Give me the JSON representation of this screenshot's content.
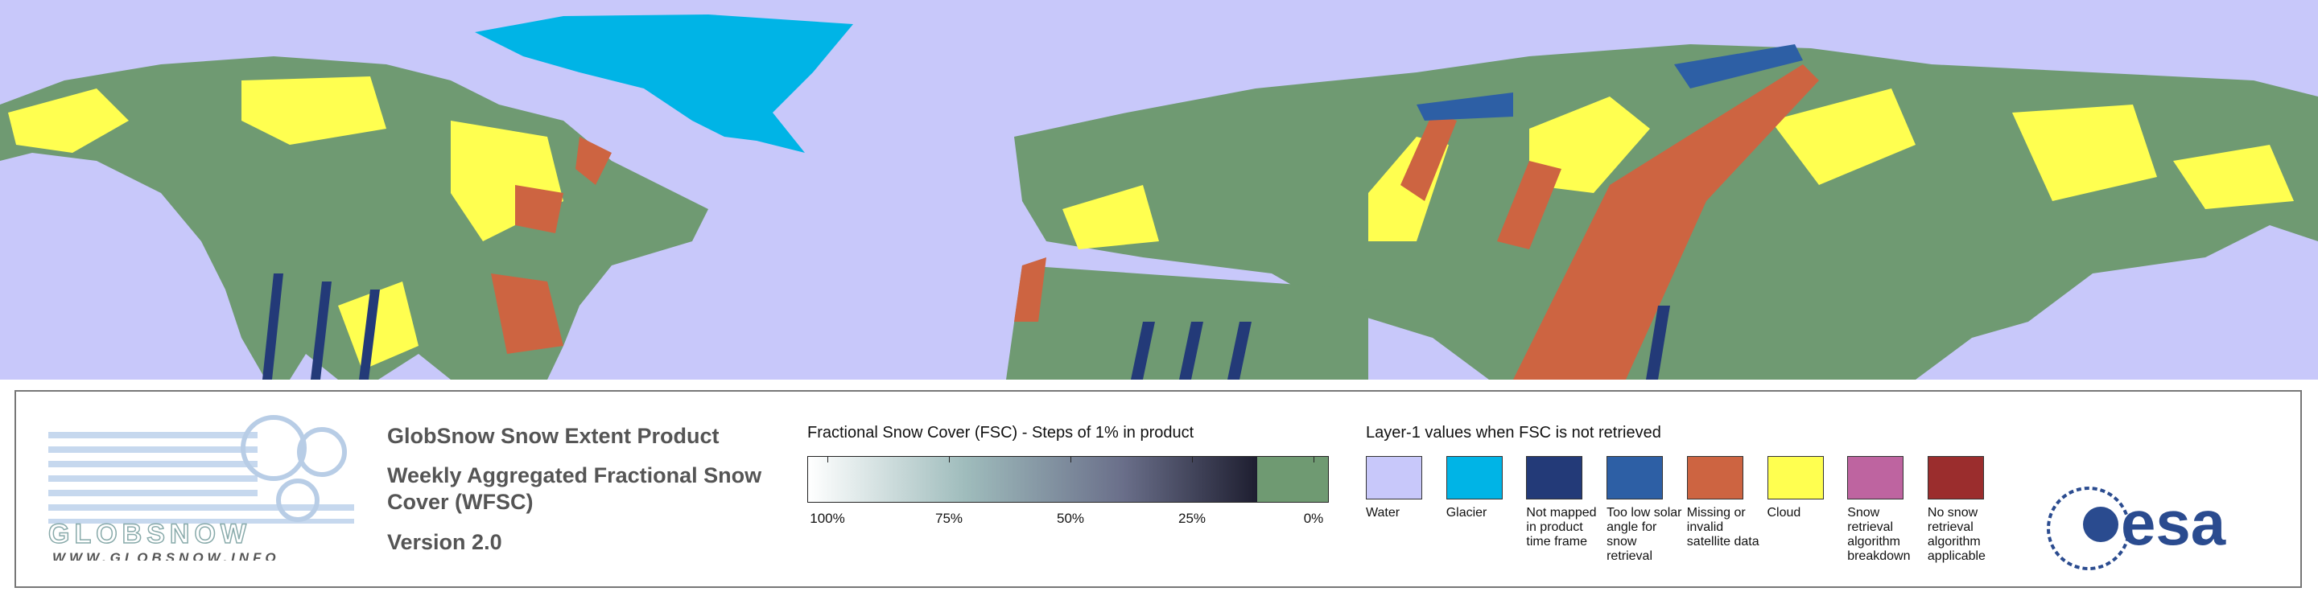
{
  "logo": {
    "name": "GLOBSNOW",
    "url": "WWW.GLOBSNOW.INFO",
    "agency": "esa"
  },
  "header": {
    "title": "GlobSnow Snow Extent Product",
    "subtitle_lines": [
      "Weekly Aggregated Fractional Snow",
      "Cover (WFSC)"
    ],
    "version": "Version 2.0"
  },
  "colorbar": {
    "title": "Fractional Snow Cover (FSC) - Steps of 1% in product",
    "ticks": [
      {
        "value": 100,
        "label": "100%"
      },
      {
        "value": 75,
        "label": "75%"
      },
      {
        "value": 50,
        "label": "50%"
      },
      {
        "value": 25,
        "label": "25%"
      },
      {
        "value": 0,
        "label": "0%"
      }
    ],
    "snow_free_color": "#6f9a72"
  },
  "legend": {
    "title": "Layer-1 values when FSC is not retrieved",
    "items": [
      {
        "label": "Water",
        "color": "#c8c8fa"
      },
      {
        "label": "Glacier",
        "color": "#00b4e6"
      },
      {
        "label": "Not mapped in product time frame",
        "color": "#233a78"
      },
      {
        "label": "Too low solar angle for snow retrieval",
        "color": "#2d5fa5"
      },
      {
        "label": "Missing or invalid satellite data",
        "color": "#cd6441"
      },
      {
        "label": "Cloud",
        "color": "#ffff50"
      },
      {
        "label": "Snow retrieval algorithm breakdown",
        "color": "#be64a0"
      },
      {
        "label": "No snow retrieval algorithm applicable",
        "color": "#9b2d2d"
      }
    ]
  }
}
